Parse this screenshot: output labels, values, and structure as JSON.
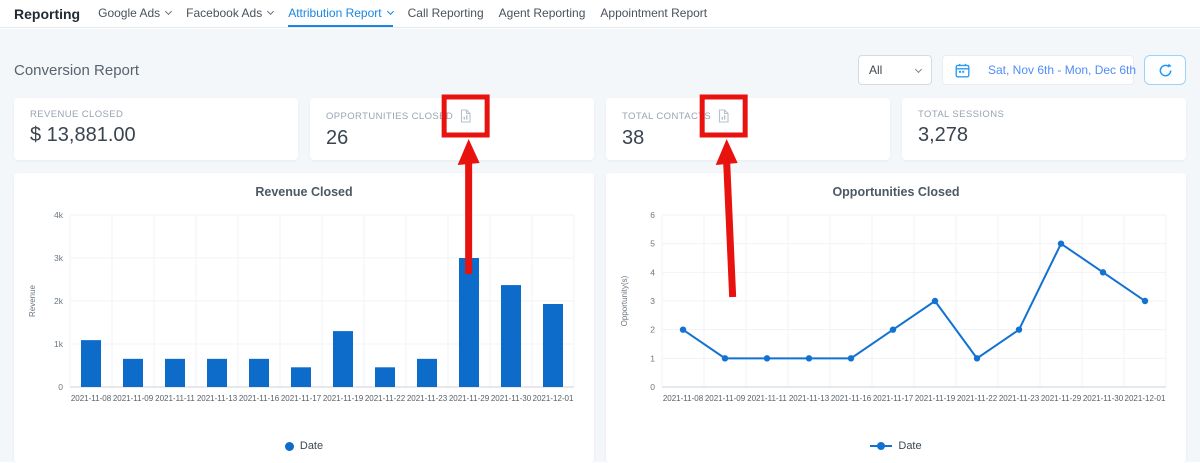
{
  "nav": {
    "title": "Reporting",
    "items": [
      {
        "label": "Google Ads",
        "has_dropdown": true,
        "active": false
      },
      {
        "label": "Facebook Ads",
        "has_dropdown": true,
        "active": false
      },
      {
        "label": "Attribution Report",
        "has_dropdown": true,
        "active": true
      },
      {
        "label": "Call Reporting",
        "has_dropdown": false,
        "active": false
      },
      {
        "label": "Agent Reporting",
        "has_dropdown": false,
        "active": false
      },
      {
        "label": "Appointment Report",
        "has_dropdown": false,
        "active": false
      }
    ]
  },
  "header": {
    "title": "Conversion Report",
    "filter_value": "All",
    "date_range": "Sat, Nov 6th - Mon, Dec 6th",
    "icons": {
      "calendar": "calendar-icon",
      "refresh": "refresh-icon",
      "dropdown": "chevron-down-icon"
    }
  },
  "stats": [
    {
      "label": "REVENUE CLOSED",
      "value": "$ 13,881.00",
      "has_export_icon": false
    },
    {
      "label": "OPPORTUNITIES CLOSED",
      "value": "26",
      "has_export_icon": true
    },
    {
      "label": "TOTAL CONTACTS",
      "value": "38",
      "has_export_icon": true
    },
    {
      "label": "TOTAL SESSIONS",
      "value": "3,278",
      "has_export_icon": false
    }
  ],
  "annotations": {
    "color": "#e8120f",
    "items": [
      {
        "type": "highlight-box-with-arrow",
        "target": "opportunities-closed-export-icon",
        "arrow_length": 135,
        "arrow_tilt": 0
      },
      {
        "type": "highlight-box-with-arrow",
        "target": "total-contacts-export-icon",
        "arrow_length": 158,
        "arrow_tilt": 6
      }
    ]
  },
  "chart_data": [
    {
      "type": "bar",
      "title": "Revenue Closed",
      "xlabel": "",
      "ylabel": "Revenue",
      "legend": [
        "Date"
      ],
      "legend_position": "bottom",
      "grid": true,
      "ylim": [
        0,
        4000
      ],
      "yticks": [
        0,
        1000,
        2000,
        3000,
        4000
      ],
      "ytick_labels": [
        "0",
        "1k",
        "2k",
        "3k",
        "4k"
      ],
      "categories": [
        "2021-11-08",
        "2021-11-09",
        "2021-11-11",
        "2021-11-13",
        "2021-11-16",
        "2021-11-17",
        "2021-11-19",
        "2021-11-22",
        "2021-11-23",
        "2021-11-29",
        "2021-11-30",
        "2021-12-01"
      ],
      "values": [
        1090,
        655,
        655,
        655,
        655,
        458,
        1300,
        458,
        655,
        3000,
        2370,
        1930
      ],
      "color": "#0d6bca"
    },
    {
      "type": "line",
      "title": "Opportunities Closed",
      "xlabel": "",
      "ylabel": "Opportunity(s)",
      "legend": [
        "Date"
      ],
      "legend_position": "bottom",
      "grid": true,
      "ylim": [
        0,
        6
      ],
      "yticks": [
        0,
        1,
        2,
        3,
        4,
        5,
        6
      ],
      "ytick_labels": [
        "0",
        "1",
        "2",
        "3",
        "4",
        "5",
        "6"
      ],
      "categories": [
        "2021-11-08",
        "2021-11-09",
        "2021-11-11",
        "2021-11-13",
        "2021-11-16",
        "2021-11-17",
        "2021-11-19",
        "2021-11-22",
        "2021-11-23",
        "2021-11-29",
        "2021-11-30",
        "2021-12-01"
      ],
      "values": [
        2,
        1,
        1,
        1,
        1,
        2,
        3,
        1,
        2,
        5,
        4,
        3
      ],
      "color": "#1272d3"
    }
  ]
}
